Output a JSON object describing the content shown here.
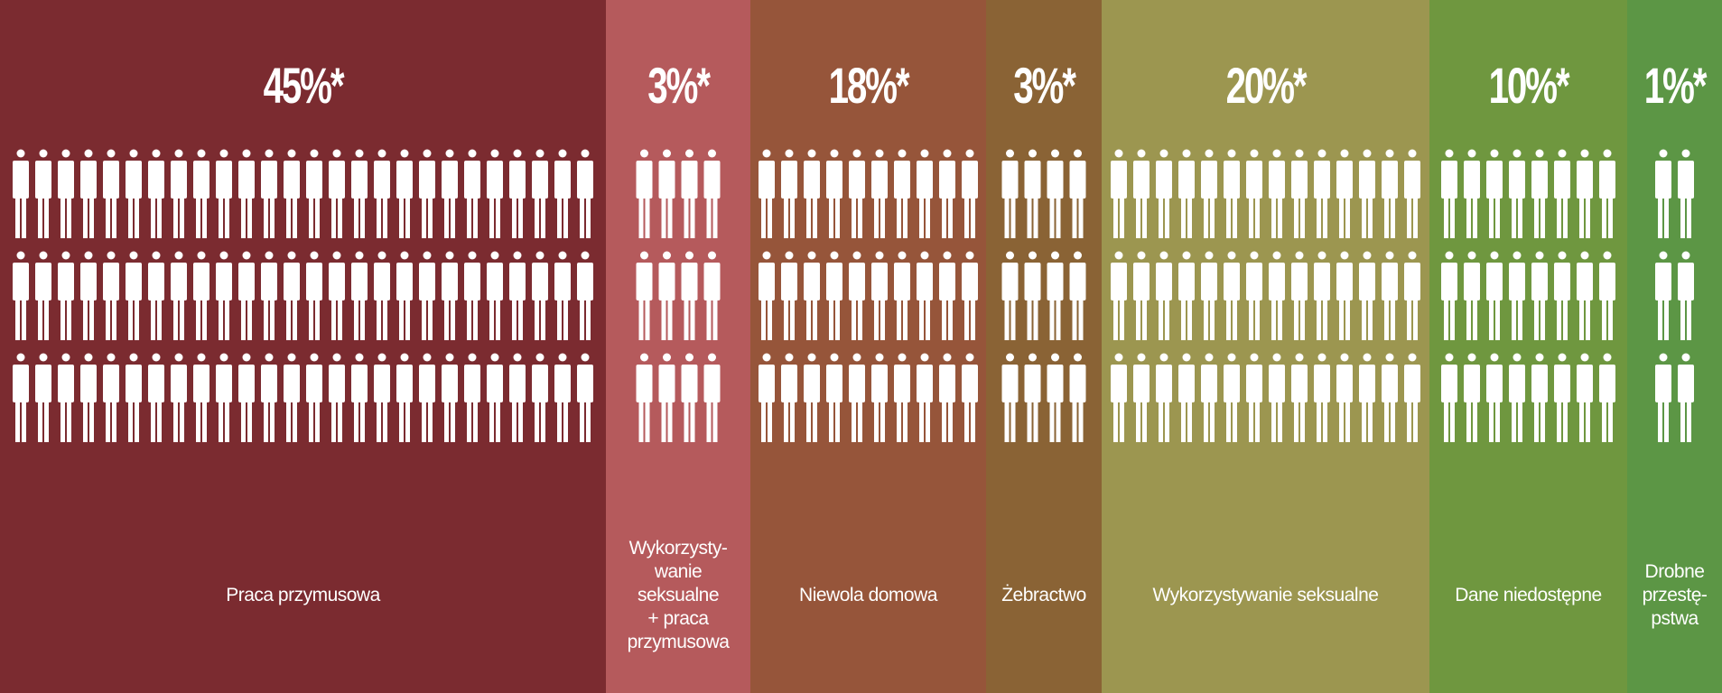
{
  "chart_data": {
    "type": "pictograph",
    "categories": [
      "Praca przymusowa",
      "Wykorzysty-\nwanie\nseksualne\n+ praca\nprzymusowa",
      "Niewola domowa",
      "Żebractwo",
      "Wykorzystywanie seksualne",
      "Dane niedostępne",
      "Drobne\nprzestę-\npstwa"
    ],
    "values": [
      45,
      3,
      18,
      3,
      20,
      10,
      1
    ],
    "value_labels": [
      "45%*",
      "3%*",
      "18%*",
      "3%*",
      "20%*",
      "10%*",
      "1%*"
    ],
    "colors": [
      "#7b2b30",
      "#b55a5c",
      "#96553a",
      "#8a6335",
      "#9c9650",
      "#6f973f",
      "#5c9645"
    ],
    "icon_color": "#ffffff"
  }
}
